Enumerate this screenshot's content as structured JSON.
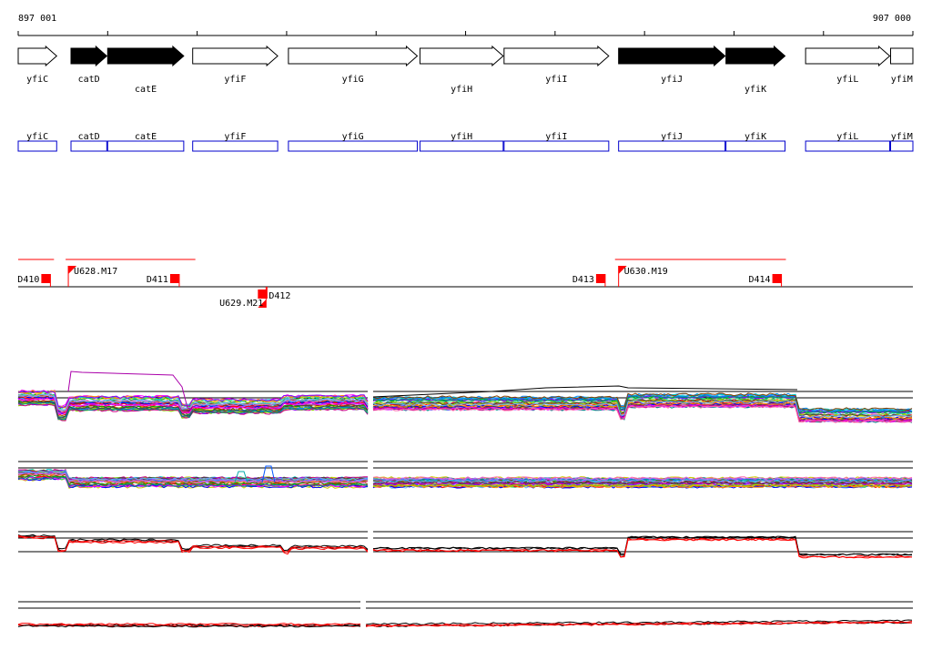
{
  "coordinates": {
    "start_label": "897 001",
    "end_label": "907 000",
    "start": 897001,
    "end": 907000
  },
  "colors": {
    "gene_fill_dark": "#000000",
    "gene_fill_light": "#ffffff",
    "box_blue": "#0000cc",
    "marker_red": "#ff0000",
    "black": "#000000"
  },
  "genes": [
    {
      "name": "yfiC",
      "start": 897001,
      "end": 897431,
      "strand": "+",
      "dark": false,
      "label_row": 1
    },
    {
      "name": "catD",
      "start": 897591,
      "end": 897991,
      "strand": "+",
      "dark": true,
      "label_row": 1
    },
    {
      "name": "catE",
      "start": 898001,
      "end": 898851,
      "strand": "+",
      "dark": true,
      "label_row": 2
    },
    {
      "name": "yfiF",
      "start": 898951,
      "end": 899901,
      "strand": "+",
      "dark": false,
      "label_row": 1
    },
    {
      "name": "yfiG",
      "start": 900021,
      "end": 901461,
      "strand": "+",
      "dark": false,
      "label_row": 1
    },
    {
      "name": "yfiH",
      "start": 901491,
      "end": 902421,
      "strand": "+",
      "dark": false,
      "label_row": 2
    },
    {
      "name": "yfiI",
      "start": 902431,
      "end": 903601,
      "strand": "+",
      "dark": false,
      "label_row": 1
    },
    {
      "name": "yfiJ",
      "start": 903711,
      "end": 904901,
      "strand": "+",
      "dark": true,
      "label_row": 1
    },
    {
      "name": "yfiK",
      "start": 904911,
      "end": 905571,
      "strand": "+",
      "dark": true,
      "label_row": 2
    },
    {
      "name": "yfiL",
      "start": 905801,
      "end": 906741,
      "strand": "+",
      "dark": false,
      "label_row": 1
    },
    {
      "name": "yfiM",
      "start": 906751,
      "end": 907000,
      "strand": "",
      "dark": false,
      "label_row": 1
    }
  ],
  "features": [
    {
      "label": "D410",
      "pos": 897361,
      "type": "D",
      "label_side": "left",
      "row": "top"
    },
    {
      "label": "U628.M17",
      "pos": 897561,
      "type": "U",
      "label_side": "right",
      "row": "top"
    },
    {
      "label": "D411",
      "pos": 898801,
      "type": "D",
      "label_side": "left",
      "row": "top"
    },
    {
      "label": "D412",
      "pos": 899761,
      "type": "D",
      "label_side": "right",
      "row": "bottom"
    },
    {
      "label": "U629.M21",
      "pos": 899771,
      "type": "U",
      "label_side": "left",
      "row": "bottom"
    },
    {
      "label": "D413",
      "pos": 903561,
      "type": "D",
      "label_side": "left",
      "row": "top"
    },
    {
      "label": "U630.M19",
      "pos": 903711,
      "type": "U",
      "label_side": "right",
      "row": "top"
    },
    {
      "label": "D414",
      "pos": 905531,
      "type": "D",
      "label_side": "left",
      "row": "top"
    }
  ],
  "transcripts": [
    {
      "start": 897001,
      "end": 897401
    },
    {
      "start": 897531,
      "end": 898981
    },
    {
      "start": 903671,
      "end": 905581
    }
  ]
}
